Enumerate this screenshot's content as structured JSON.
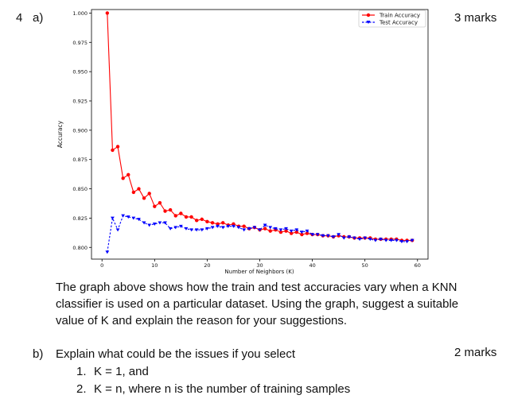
{
  "question_a": {
    "number": "4",
    "part": "a)",
    "marks": "3 marks"
  },
  "question_a_text": "The graph above shows how the train and test accuracies vary when a KNN classifier is used on a particular dataset. Using the graph, suggest a suitable value of K and explain the reason for your suggestions.",
  "question_a_lines": [
    "The graph above shows how the train and test accuracies vary when a KNN",
    "classifier is used on a particular dataset. Using the graph, suggest a suitable",
    "value of K and explain the reason for your suggestions."
  ],
  "question_b": {
    "part": "b)",
    "marks": "2 marks",
    "text": "Explain what could be the issues if you select",
    "items": [
      {
        "num": "1.",
        "text": "K = 1, and"
      },
      {
        "num": "2.",
        "text": "K = n, where n is the number of training samples"
      }
    ]
  },
  "colors": {
    "train": "#ff0000",
    "test": "#0000ff"
  },
  "chart_data": {
    "type": "line",
    "title": "",
    "xlabel": "Number of Neighbors (K)",
    "ylabel": "Accuracy",
    "xlim": [
      -2,
      62
    ],
    "ylim": [
      0.79,
      1.003
    ],
    "xticks": [
      0,
      10,
      20,
      30,
      40,
      50,
      60
    ],
    "yticks": [
      0.8,
      0.825,
      0.85,
      0.875,
      0.9,
      0.925,
      0.95,
      0.975,
      1.0
    ],
    "yticklabels": [
      "0.800",
      "0.825",
      "0.850",
      "0.875",
      "0.900",
      "0.925",
      "0.950",
      "0.975",
      "1.000"
    ],
    "grid": false,
    "legend_position": "top-right",
    "x": [
      1,
      2,
      3,
      4,
      5,
      6,
      7,
      8,
      9,
      10,
      11,
      12,
      13,
      14,
      15,
      16,
      17,
      18,
      19,
      20,
      21,
      22,
      23,
      24,
      25,
      26,
      27,
      28,
      29,
      30,
      31,
      32,
      33,
      34,
      35,
      36,
      37,
      38,
      39,
      40,
      41,
      42,
      43,
      44,
      45,
      46,
      47,
      48,
      49,
      50,
      51,
      52,
      53,
      54,
      55,
      56,
      57,
      58,
      59
    ],
    "series": [
      {
        "name": "Train Accuracy",
        "color": "#ff0000",
        "marker": "circle",
        "linestyle": "solid",
        "values": [
          1.0,
          0.883,
          0.886,
          0.859,
          0.862,
          0.847,
          0.85,
          0.842,
          0.846,
          0.835,
          0.838,
          0.831,
          0.832,
          0.827,
          0.829,
          0.826,
          0.826,
          0.823,
          0.824,
          0.822,
          0.821,
          0.82,
          0.821,
          0.819,
          0.82,
          0.818,
          0.818,
          0.816,
          0.817,
          0.815,
          0.816,
          0.814,
          0.815,
          0.813,
          0.814,
          0.812,
          0.813,
          0.811,
          0.812,
          0.811,
          0.811,
          0.81,
          0.81,
          0.809,
          0.81,
          0.809,
          0.809,
          0.808,
          0.808,
          0.808,
          0.808,
          0.807,
          0.807,
          0.807,
          0.807,
          0.807,
          0.806,
          0.806,
          0.806
        ]
      },
      {
        "name": "Test Accuracy",
        "color": "#0000ff",
        "marker": "triangle-down",
        "linestyle": "dashed",
        "values": [
          0.796,
          0.825,
          0.815,
          0.827,
          0.826,
          0.825,
          0.824,
          0.821,
          0.819,
          0.82,
          0.821,
          0.821,
          0.816,
          0.817,
          0.818,
          0.816,
          0.815,
          0.815,
          0.815,
          0.816,
          0.817,
          0.818,
          0.817,
          0.818,
          0.818,
          0.817,
          0.815,
          0.816,
          0.817,
          0.815,
          0.819,
          0.817,
          0.816,
          0.815,
          0.816,
          0.814,
          0.815,
          0.813,
          0.814,
          0.811,
          0.811,
          0.81,
          0.81,
          0.809,
          0.811,
          0.808,
          0.809,
          0.808,
          0.807,
          0.808,
          0.807,
          0.806,
          0.807,
          0.806,
          0.806,
          0.806,
          0.805,
          0.805,
          0.806
        ]
      }
    ]
  }
}
